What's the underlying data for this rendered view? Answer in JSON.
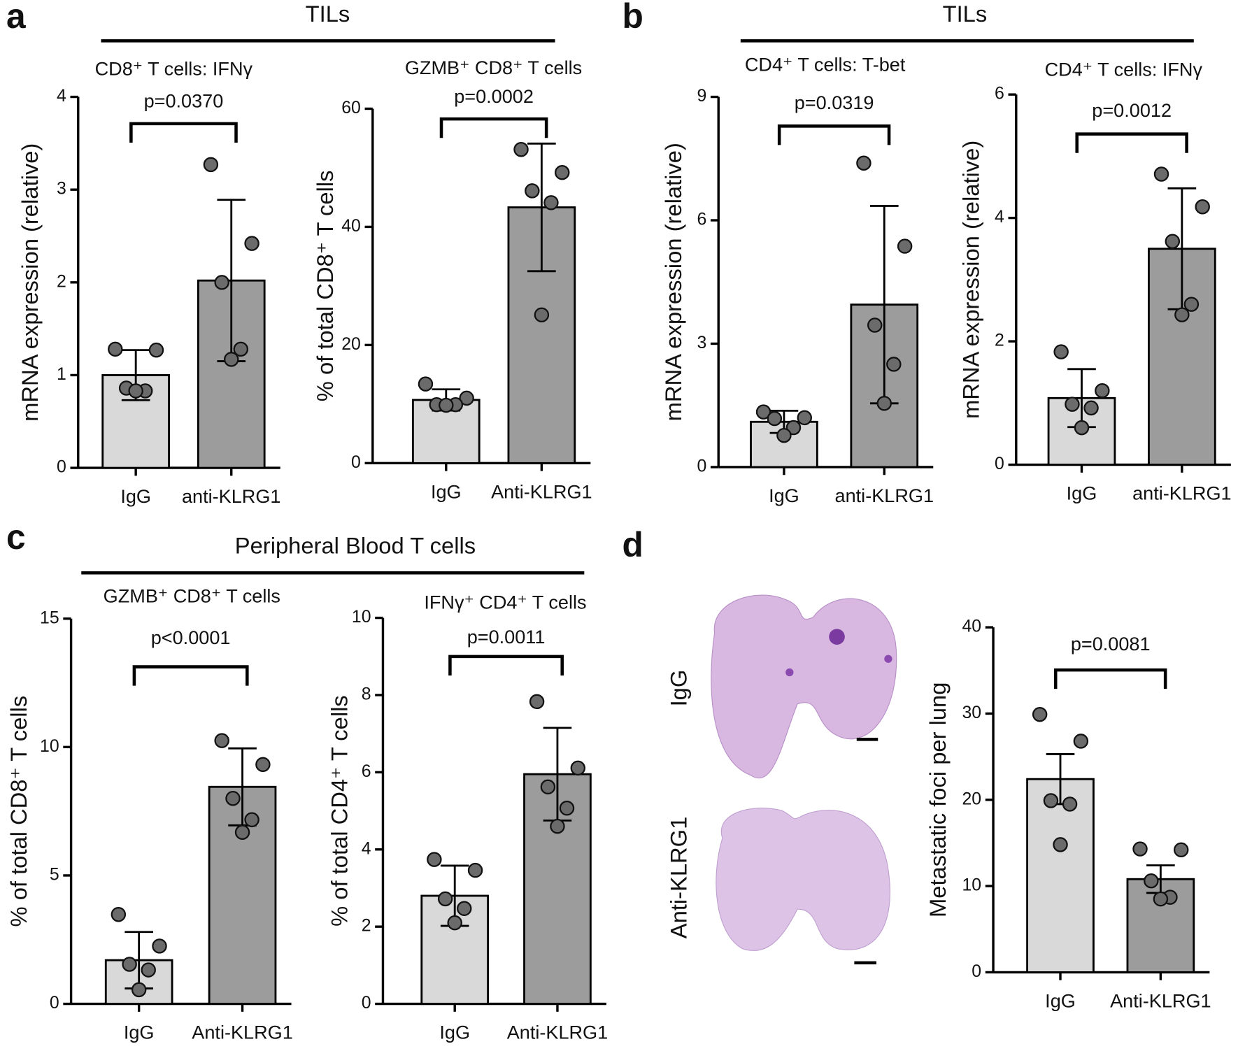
{
  "panel_labels": [
    "a",
    "b",
    "c",
    "d"
  ],
  "group_titles": [
    "TILs",
    "TILs",
    "Peripheral Blood T cells"
  ],
  "image_labels": [
    "IgG",
    "Anti-KLRG1"
  ],
  "colors": [
    "#d9d9d9",
    "#9c9c9c"
  ],
  "chart_data": [
    {
      "type": "bar",
      "title": "CD8⁺ T cells: IFNγ",
      "ylabel": "mRNA expression (relative)",
      "categories": [
        "IgG",
        "anti-KLRG1"
      ],
      "values": [
        1.0,
        2.02
      ],
      "errors": [
        0.27,
        0.87
      ],
      "points": [
        [
          1.28,
          1.27,
          0.86,
          0.83,
          0.83
        ],
        [
          3.27,
          2.42,
          2.0,
          1.28,
          1.17
        ]
      ],
      "ylim": [
        0,
        4
      ],
      "yticks": [
        0,
        1,
        2,
        3,
        4
      ],
      "annotation": "p=0.0370"
    },
    {
      "type": "bar",
      "title": "GZMB⁺ CD8⁺ T cells",
      "ylabel": "% of total CD8⁺ T cells",
      "categories": [
        "IgG",
        "Anti-KLRG1"
      ],
      "values": [
        10.7,
        43.3
      ],
      "errors": [
        1.8,
        10.8
      ],
      "points": [
        [
          13.4,
          11.0,
          9.9,
          9.9,
          9.8
        ],
        [
          53.1,
          49.2,
          46.1,
          44.1,
          25.1
        ]
      ],
      "ylim": [
        0,
        60
      ],
      "yticks": [
        0,
        20,
        40,
        60
      ],
      "annotation": "p=0.0002"
    },
    {
      "type": "bar",
      "title": "CD4⁺ T cells: T-bet",
      "ylabel": "mRNA expression (relative)",
      "categories": [
        "IgG",
        "anti-KLRG1"
      ],
      "values": [
        1.1,
        3.95
      ],
      "errors": [
        0.27,
        2.4
      ],
      "points": [
        [
          1.34,
          1.2,
          1.18,
          0.96,
          0.77
        ],
        [
          7.39,
          5.37,
          3.45,
          2.5,
          1.55
        ]
      ],
      "ylim": [
        0,
        9
      ],
      "yticks": [
        0,
        3,
        6,
        9
      ],
      "annotation": "p=0.0319"
    },
    {
      "type": "bar",
      "title": "CD4⁺ T cells: IFNγ",
      "ylabel": "mRNA expression (relative)",
      "categories": [
        "IgG",
        "anti-KLRG1"
      ],
      "values": [
        1.08,
        3.5
      ],
      "errors": [
        0.47,
        0.98
      ],
      "points": [
        [
          1.83,
          1.2,
          0.98,
          0.92,
          0.6
        ],
        [
          4.71,
          4.18,
          3.62,
          2.6,
          2.43
        ]
      ],
      "ylim": [
        0,
        6
      ],
      "yticks": [
        0,
        2,
        4,
        6
      ],
      "annotation": "p=0.0012"
    },
    {
      "type": "bar",
      "title": "GZMB⁺ CD8⁺ T cells",
      "ylabel": "% of total CD8⁺ T cells",
      "categories": [
        "IgG",
        "Anti-KLRG1"
      ],
      "values": [
        1.7,
        8.45
      ],
      "errors": [
        1.1,
        1.5
      ],
      "points": [
        [
          3.48,
          2.25,
          1.54,
          1.32,
          0.55
        ],
        [
          10.25,
          9.32,
          8.0,
          7.17,
          6.68
        ]
      ],
      "ylim": [
        0,
        15
      ],
      "yticks": [
        0,
        5,
        10,
        15
      ],
      "annotation": "p<0.0001"
    },
    {
      "type": "bar",
      "title": "IFNγ⁺ CD4⁺ T cells",
      "ylabel": "% of total CD4⁺ T cells",
      "categories": [
        "IgG",
        "Anti-KLRG1"
      ],
      "values": [
        2.8,
        5.95
      ],
      "errors": [
        0.78,
        1.2
      ],
      "points": [
        [
          3.74,
          3.46,
          2.72,
          2.47,
          2.1
        ],
        [
          7.83,
          6.11,
          5.62,
          5.07,
          4.6
        ]
      ],
      "ylim": [
        0,
        10
      ],
      "yticks": [
        0,
        2,
        4,
        6,
        8,
        10
      ],
      "annotation": "p=0.0011"
    },
    {
      "type": "bar",
      "ylabel": "Metastatic foci per lung",
      "categories": [
        "IgG",
        "Anti-KLRG1"
      ],
      "values": [
        22.4,
        10.8
      ],
      "errors": [
        2.9,
        1.6
      ],
      "points": [
        [
          29.9,
          26.8,
          19.9,
          19.5,
          14.8
        ],
        [
          14.3,
          14.2,
          10.6,
          8.7,
          8.5
        ]
      ],
      "ylim": [
        0,
        40
      ],
      "yticks": [
        0,
        10,
        20,
        30,
        40
      ],
      "annotation": "p=0.0081"
    }
  ]
}
